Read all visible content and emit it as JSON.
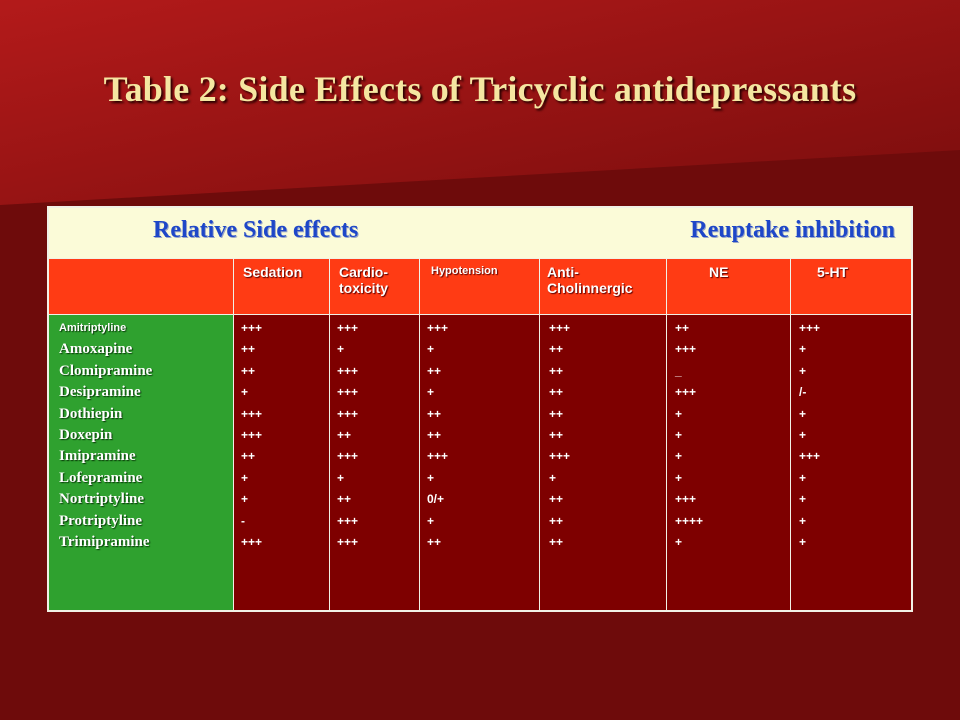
{
  "slide": {
    "title": "Table 2: Side Effects of Tricyclic antidepressants",
    "colors": {
      "background": "#6e0b0b",
      "title_text": "#f5e6a1",
      "header_band": "#fbfbd8",
      "header_band_text": "#1e47c8",
      "column_header_row": "#ff3b14",
      "names_column": "#2fa12f",
      "data_cells": "#7e0000"
    }
  },
  "table": {
    "group_headers": {
      "left": "Relative Side effects",
      "right": "Reuptake inhibition"
    },
    "columns": {
      "sedation": "Sedation",
      "cardio": "Cardio-\ntoxicity",
      "hypotension": "Hypotension",
      "anti": "Anti-\nCholinnergic",
      "ne": "NE",
      "ht": "5-HT"
    },
    "drugs": [
      "Amitriptyline",
      "Amoxapine",
      "Clomipramine",
      "Desipramine",
      "Dothiepin",
      "Doxepin",
      "Imipramine",
      "Lofepramine",
      "Nortriptyline",
      "Protriptyline",
      "Trimipramine"
    ],
    "values": {
      "sedation": [
        "+++",
        "++",
        "++",
        "+",
        "+++",
        "+++",
        "++",
        "+",
        "+",
        "-",
        "+++"
      ],
      "cardio": [
        "+++",
        "+",
        "+++",
        "+++",
        "+++",
        "++",
        "+++",
        "+",
        "++",
        "+++",
        "+++"
      ],
      "hypotension": [
        "+++",
        "+",
        "++",
        "+",
        "++",
        "++",
        "+++",
        "+",
        "0/+",
        "+",
        "++"
      ],
      "anti": [
        "+++",
        "++",
        "++",
        "++",
        "++",
        "++",
        "+++",
        "+",
        "++",
        "++",
        "++"
      ],
      "ne": [
        "++",
        "+++",
        "_",
        "+++",
        "+",
        "+",
        "+",
        "+",
        "+++",
        "++++",
        "+"
      ],
      "ht": [
        "+++",
        "+",
        "+",
        "/-",
        "+",
        "+",
        "+++",
        "+",
        "+",
        "+",
        "+"
      ]
    }
  }
}
